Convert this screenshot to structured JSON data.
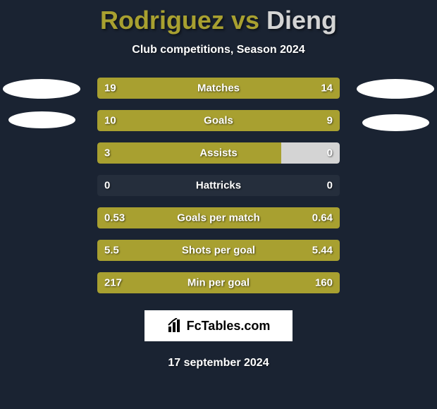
{
  "header": {
    "player1_name": "Rodriguez",
    "vs_text": "vs",
    "player2_name": "Dieng",
    "subtitle": "Club competitions, Season 2024"
  },
  "colors": {
    "background": "#1a2332",
    "player1_color": "#a8a030",
    "player2_color": "#d4d4d4",
    "text_color": "#ffffff"
  },
  "stats": [
    {
      "label": "Matches",
      "left_value": "19",
      "right_value": "14",
      "left_pct": 100,
      "right_pct": 0
    },
    {
      "label": "Goals",
      "left_value": "10",
      "right_value": "9",
      "left_pct": 100,
      "right_pct": 0
    },
    {
      "label": "Assists",
      "left_value": "3",
      "right_value": "0",
      "left_pct": 76,
      "right_pct": 24
    },
    {
      "label": "Hattricks",
      "left_value": "0",
      "right_value": "0",
      "left_pct": 0,
      "right_pct": 0
    },
    {
      "label": "Goals per match",
      "left_value": "0.53",
      "right_value": "0.64",
      "left_pct": 100,
      "right_pct": 0
    },
    {
      "label": "Shots per goal",
      "left_value": "5.5",
      "right_value": "5.44",
      "left_pct": 100,
      "right_pct": 0
    },
    {
      "label": "Min per goal",
      "left_value": "217",
      "right_value": "160",
      "left_pct": 100,
      "right_pct": 0
    }
  ],
  "footer": {
    "logo_text": "FcTables.com",
    "date_text": "17 september 2024"
  }
}
